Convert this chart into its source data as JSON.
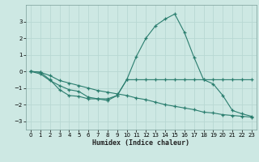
{
  "x": [
    0,
    1,
    2,
    3,
    4,
    5,
    6,
    7,
    8,
    9,
    10,
    11,
    12,
    13,
    14,
    15,
    16,
    17,
    18,
    19,
    20,
    21,
    22,
    23
  ],
  "line1": [
    0.0,
    -0.15,
    -0.55,
    -0.85,
    -1.1,
    -1.2,
    -1.55,
    -1.65,
    -1.75,
    -1.45,
    -0.5,
    -0.5,
    -0.5,
    -0.5,
    -0.5,
    -0.5,
    -0.5,
    -0.5,
    -0.5,
    -0.75,
    -1.45,
    -2.35,
    -2.55,
    -2.7
  ],
  "line2": [
    0.0,
    -0.05,
    -0.5,
    -1.1,
    -1.45,
    -1.5,
    -1.65,
    -1.65,
    -1.65,
    -1.45,
    -0.5,
    0.9,
    2.0,
    2.75,
    3.15,
    3.45,
    2.35,
    0.85,
    -0.5,
    -0.5,
    -0.5,
    -0.5,
    -0.5,
    -0.5
  ],
  "line3": [
    0.0,
    -0.05,
    -0.25,
    -0.55,
    -0.7,
    -0.85,
    -1.0,
    -1.15,
    -1.25,
    -1.35,
    -1.45,
    -1.6,
    -1.7,
    -1.85,
    -2.0,
    -2.1,
    -2.2,
    -2.3,
    -2.45,
    -2.5,
    -2.6,
    -2.65,
    -2.7,
    -2.75
  ],
  "color": "#2a7d6e",
  "bg_color": "#cde8e3",
  "grid_color": "#b8d8d3",
  "xlabel": "Humidex (Indice chaleur)",
  "xlim": [
    -0.5,
    23.5
  ],
  "ylim": [
    -3.5,
    4.0
  ],
  "yticks": [
    -3,
    -2,
    -1,
    0,
    1,
    2,
    3
  ],
  "xticks": [
    0,
    1,
    2,
    3,
    4,
    5,
    6,
    7,
    8,
    9,
    10,
    11,
    12,
    13,
    14,
    15,
    16,
    17,
    18,
    19,
    20,
    21,
    22,
    23
  ]
}
